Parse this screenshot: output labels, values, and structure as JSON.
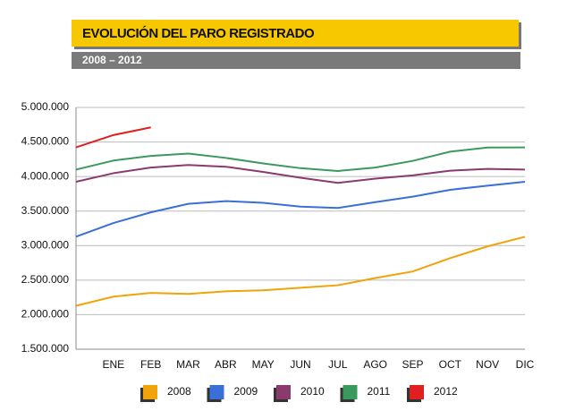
{
  "chart_data": {
    "type": "line",
    "title": "EVOLUCIÓN DEL PARO REGISTRADO",
    "subtitle": "2008 – 2012",
    "categories": [
      null,
      "ENE",
      "FEB",
      "MAR",
      "ABR",
      "MAY",
      "JUN",
      "JUL",
      "AGO",
      "SEP",
      "OCT",
      "NOV",
      "DIC"
    ],
    "series": [
      {
        "name": "2008",
        "color": "#f0a30a",
        "values": [
          2129000,
          2261000,
          2315000,
          2301000,
          2338000,
          2353000,
          2390000,
          2426000,
          2530000,
          2625000,
          2818000,
          2989000,
          3128000
        ]
      },
      {
        "name": "2009",
        "color": "#3a6fd8",
        "values": [
          3129000,
          3327000,
          3482000,
          3605000,
          3644000,
          3620000,
          3564000,
          3545000,
          3629000,
          3709000,
          3808000,
          3868000,
          3924000
        ]
      },
      {
        "name": "2010",
        "color": "#8b3a6e",
        "values": [
          3924000,
          4048000,
          4130000,
          4167000,
          4142000,
          4066000,
          3982000,
          3908000,
          3969000,
          4017000,
          4085000,
          4110000,
          4100000
        ]
      },
      {
        "name": "2011",
        "color": "#3a9a5e",
        "values": [
          4100000,
          4231000,
          4299000,
          4333000,
          4270000,
          4190000,
          4121000,
          4080000,
          4130000,
          4226000,
          4360000,
          4420000,
          4422000
        ]
      },
      {
        "name": "2012",
        "color": "#e02020",
        "values": [
          4422000,
          4600000,
          4712000,
          null,
          null,
          null,
          null,
          null,
          null,
          null,
          null,
          null,
          null
        ]
      }
    ],
    "ylim": [
      1500000,
      5000000
    ],
    "yticks": [
      {
        "value": 1500000,
        "label": "1.500.000"
      },
      {
        "value": 2000000,
        "label": "2.000.000"
      },
      {
        "value": 2500000,
        "label": "2.500.000"
      },
      {
        "value": 3000000,
        "label": "3.000.000"
      },
      {
        "value": 3500000,
        "label": "3.500.000"
      },
      {
        "value": 4000000,
        "label": "4.000.000"
      },
      {
        "value": 4500000,
        "label": "4.500.000"
      },
      {
        "value": 5000000,
        "label": "5.000.000"
      }
    ],
    "grid": true
  }
}
